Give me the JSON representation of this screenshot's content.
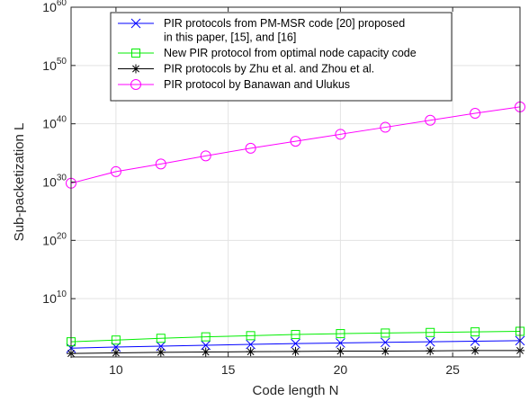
{
  "chart_data": {
    "type": "line",
    "xlabel": "Code length N",
    "ylabel": "Sub-packetization L",
    "xlim": [
      8,
      28
    ],
    "ylim": [
      0,
      60
    ],
    "y_scale": "log10",
    "grid": true,
    "legend_position": "top",
    "x_ticks": [
      10,
      15,
      20,
      25
    ],
    "y_ticks": [
      {
        "base": "10",
        "exp": "10",
        "value": 10
      },
      {
        "base": "10",
        "exp": "20",
        "value": 20
      },
      {
        "base": "10",
        "exp": "30",
        "value": 30
      },
      {
        "base": "10",
        "exp": "40",
        "value": 40
      },
      {
        "base": "10",
        "exp": "50",
        "value": 50
      },
      {
        "base": "10",
        "exp": "60",
        "value": 60
      }
    ],
    "x": [
      8,
      10,
      12,
      14,
      16,
      18,
      20,
      22,
      24,
      26,
      28
    ],
    "series": [
      {
        "name": "PIR protocols from PM-MSR code [20] proposed in this paper, [15], and [16]",
        "legend_lines": [
          "PIR protocols from PM-MSR code [20] proposed",
          "in this paper, [15], and [16]"
        ],
        "color": "#0000ff",
        "marker": "x",
        "log10_values": [
          1.5,
          1.7,
          1.85,
          2.0,
          2.15,
          2.3,
          2.4,
          2.5,
          2.6,
          2.7,
          2.8
        ]
      },
      {
        "name": "New PIR protocol from optimal node capacity code",
        "legend_lines": [
          "New PIR protocol from optimal node capacity code"
        ],
        "color": "#00ee00",
        "marker": "square",
        "log10_values": [
          2.6,
          2.9,
          3.2,
          3.45,
          3.65,
          3.85,
          4.0,
          4.1,
          4.2,
          4.3,
          4.4
        ]
      },
      {
        "name": "PIR protocols by Zhu et al. and Zhou et al.",
        "legend_lines": [
          "PIR protocols by Zhu et al. and Zhou et al."
        ],
        "color": "#000000",
        "marker": "asterisk",
        "log10_values": [
          0.6,
          0.7,
          0.8,
          0.85,
          0.9,
          0.95,
          1.0,
          1.0,
          1.05,
          1.1,
          1.1
        ]
      },
      {
        "name": "PIR protocol by Banawan and Ulukus",
        "legend_lines": [
          "PIR protocol by Banawan and Ulukus"
        ],
        "color": "#ff00ff",
        "marker": "circle",
        "log10_values": [
          29.8,
          31.8,
          33.1,
          34.5,
          35.8,
          37.0,
          38.2,
          39.4,
          40.6,
          41.8,
          42.9
        ]
      }
    ]
  }
}
